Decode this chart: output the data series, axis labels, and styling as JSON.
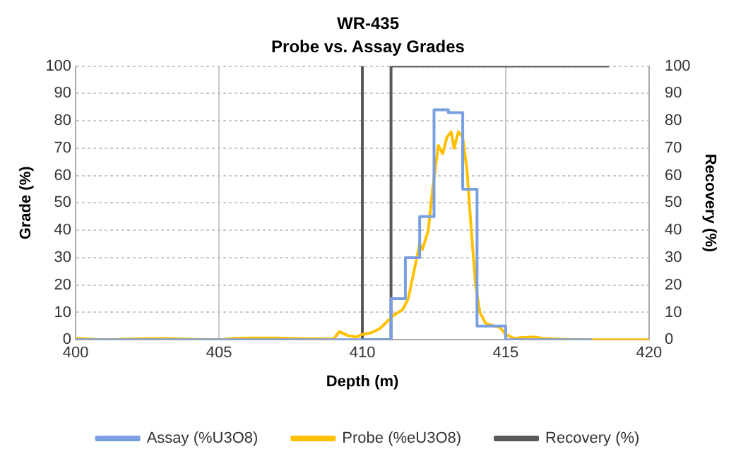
{
  "chart_data": {
    "type": "line",
    "title": "WR-435",
    "subtitle": "Probe vs. Assay Grades",
    "xlabel": "Depth (m)",
    "ylabel": "Grade (%)",
    "y2label": "Recovery (%)",
    "xlim": [
      400,
      420
    ],
    "xticks": [
      400,
      405,
      410,
      415,
      420
    ],
    "ylim": [
      0,
      100
    ],
    "yticks": [
      0,
      10,
      20,
      30,
      40,
      50,
      60,
      70,
      80,
      90,
      100
    ],
    "y2lim": [
      0,
      100
    ],
    "y2ticks": [
      0,
      10,
      20,
      30,
      40,
      50,
      60,
      70,
      80,
      90,
      100
    ],
    "grid": true,
    "legend": "bottom",
    "marker": "none",
    "series": [
      {
        "name": "Assay (%U3O8)",
        "type": "step",
        "color": "#7a9fe0",
        "x": [
          400,
          411,
          411.5,
          412,
          412.5,
          413,
          413.5,
          414,
          415,
          418
        ],
        "values": [
          0,
          15,
          30,
          45,
          84,
          83,
          55,
          5,
          0,
          0
        ]
      },
      {
        "name": "Probe (%eU3O8)",
        "type": "line",
        "color": "#ffc000",
        "x": [
          400,
          401,
          402,
          403,
          404,
          405,
          405.5,
          406,
          407,
          408,
          409,
          409.2,
          409.5,
          409.8,
          410,
          410.3,
          410.6,
          410.9,
          411.1,
          411.4,
          411.6,
          411.8,
          412,
          412.1,
          412.3,
          412.45,
          412.65,
          412.8,
          412.95,
          413.1,
          413.2,
          413.35,
          413.5,
          413.65,
          413.8,
          413.95,
          414.1,
          414.3,
          414.6,
          414.8,
          415,
          415.3,
          415.6,
          416,
          416.3,
          417,
          418,
          420
        ],
        "values": [
          0.5,
          0,
          0.3,
          0.5,
          0.2,
          0,
          0.5,
          0.6,
          0.6,
          0.4,
          0.3,
          3,
          1.5,
          1,
          2,
          2.5,
          4,
          7,
          9,
          11,
          15,
          25,
          35,
          33,
          40,
          55,
          71,
          68,
          74,
          76,
          70,
          76,
          74,
          62,
          40,
          20,
          10,
          6,
          5,
          4.5,
          2,
          0.5,
          0.8,
          1,
          0.5,
          0.2,
          0,
          0
        ]
      },
      {
        "name": "Recovery (%)",
        "type": "step",
        "axis": "y2",
        "color": "#595959",
        "x": [
          410,
          410,
          411,
          418.6
        ],
        "values": [
          100,
          0,
          100,
          100
        ]
      }
    ]
  }
}
